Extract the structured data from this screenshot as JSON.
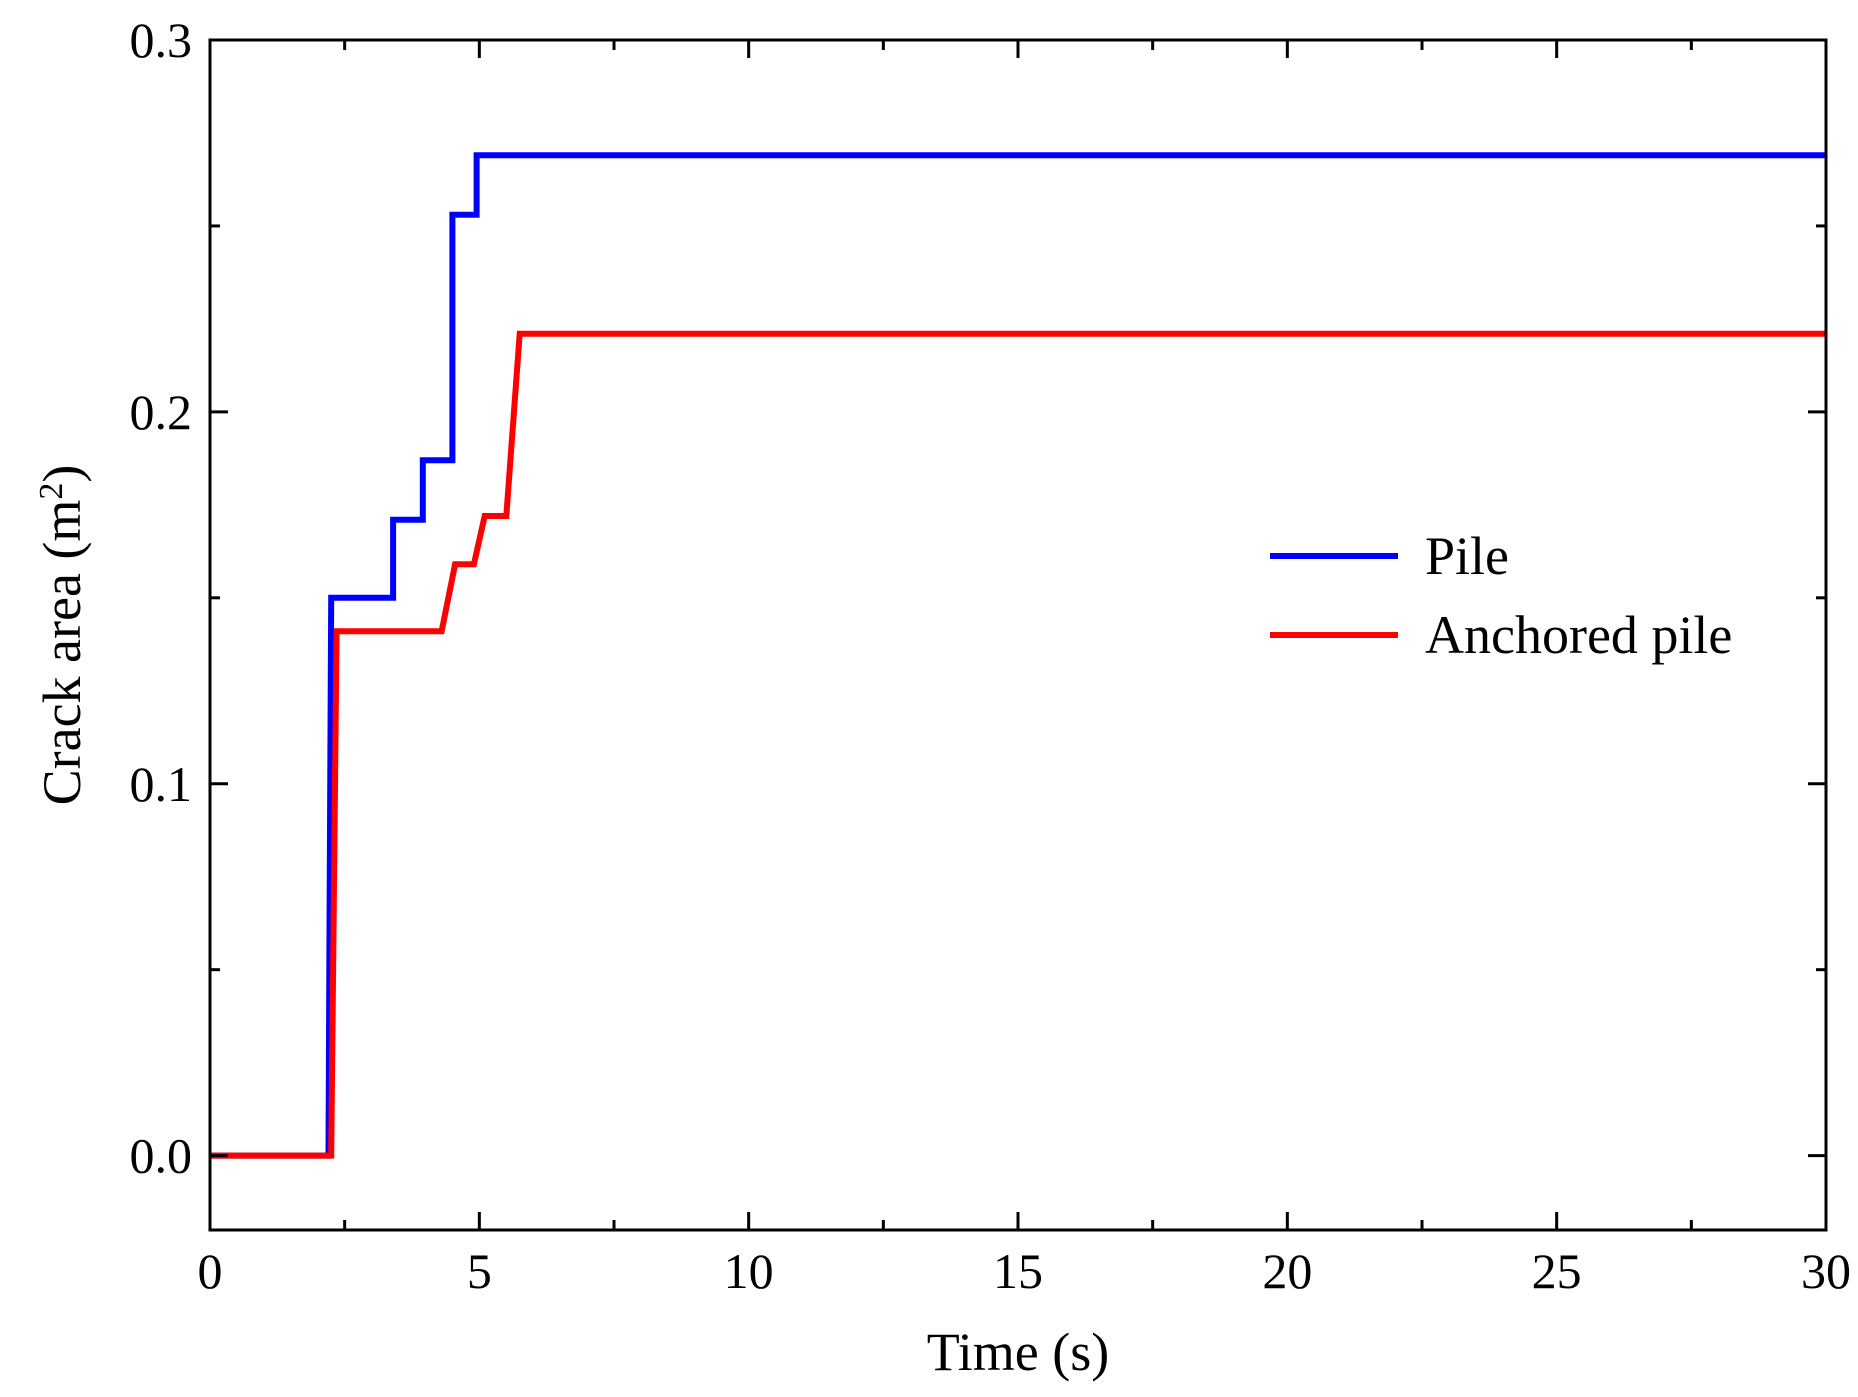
{
  "chart_data": {
    "type": "line",
    "title": "",
    "xlabel": "Time (s)",
    "ylabel": {
      "prefix": "Crack area (m",
      "superscript": "2",
      "suffix": ")"
    },
    "xlim": [
      0,
      30
    ],
    "ylim": [
      -0.02,
      0.3
    ],
    "x_ticks": [
      0,
      5,
      10,
      15,
      20,
      25,
      30
    ],
    "x_tick_labels": [
      "0",
      "5",
      "10",
      "15",
      "20",
      "25",
      "30"
    ],
    "y_ticks": [
      0.0,
      0.1,
      0.2,
      0.3
    ],
    "y_tick_labels": [
      "0.0",
      "0.1",
      "0.2",
      "0.3"
    ],
    "x_minor_ticks": [
      2.5,
      7.5,
      12.5,
      17.5,
      22.5,
      27.5
    ],
    "y_minor_ticks": [
      0.05,
      0.15,
      0.25
    ],
    "grid": false,
    "legend_position": "right-middle",
    "series": [
      {
        "name": "Pile",
        "color": "#0000ff",
        "points": [
          [
            0,
            0
          ],
          [
            2.2,
            0
          ],
          [
            2.22,
            0.067
          ],
          [
            2.25,
            0.15
          ],
          [
            3.4,
            0.15
          ],
          [
            3.4,
            0.171
          ],
          [
            3.95,
            0.171
          ],
          [
            3.95,
            0.187
          ],
          [
            4.5,
            0.187
          ],
          [
            4.5,
            0.253
          ],
          [
            4.95,
            0.253
          ],
          [
            4.95,
            0.269
          ],
          [
            30,
            0.269
          ]
        ]
      },
      {
        "name": "Anchored pile",
        "color": "#ff0000",
        "points": [
          [
            0,
            0
          ],
          [
            2.25,
            0
          ],
          [
            2.35,
            0.141
          ],
          [
            4.3,
            0.141
          ],
          [
            4.55,
            0.159
          ],
          [
            4.9,
            0.159
          ],
          [
            5.1,
            0.172
          ],
          [
            5.5,
            0.172
          ],
          [
            5.75,
            0.221
          ],
          [
            30,
            0.221
          ]
        ]
      }
    ]
  }
}
